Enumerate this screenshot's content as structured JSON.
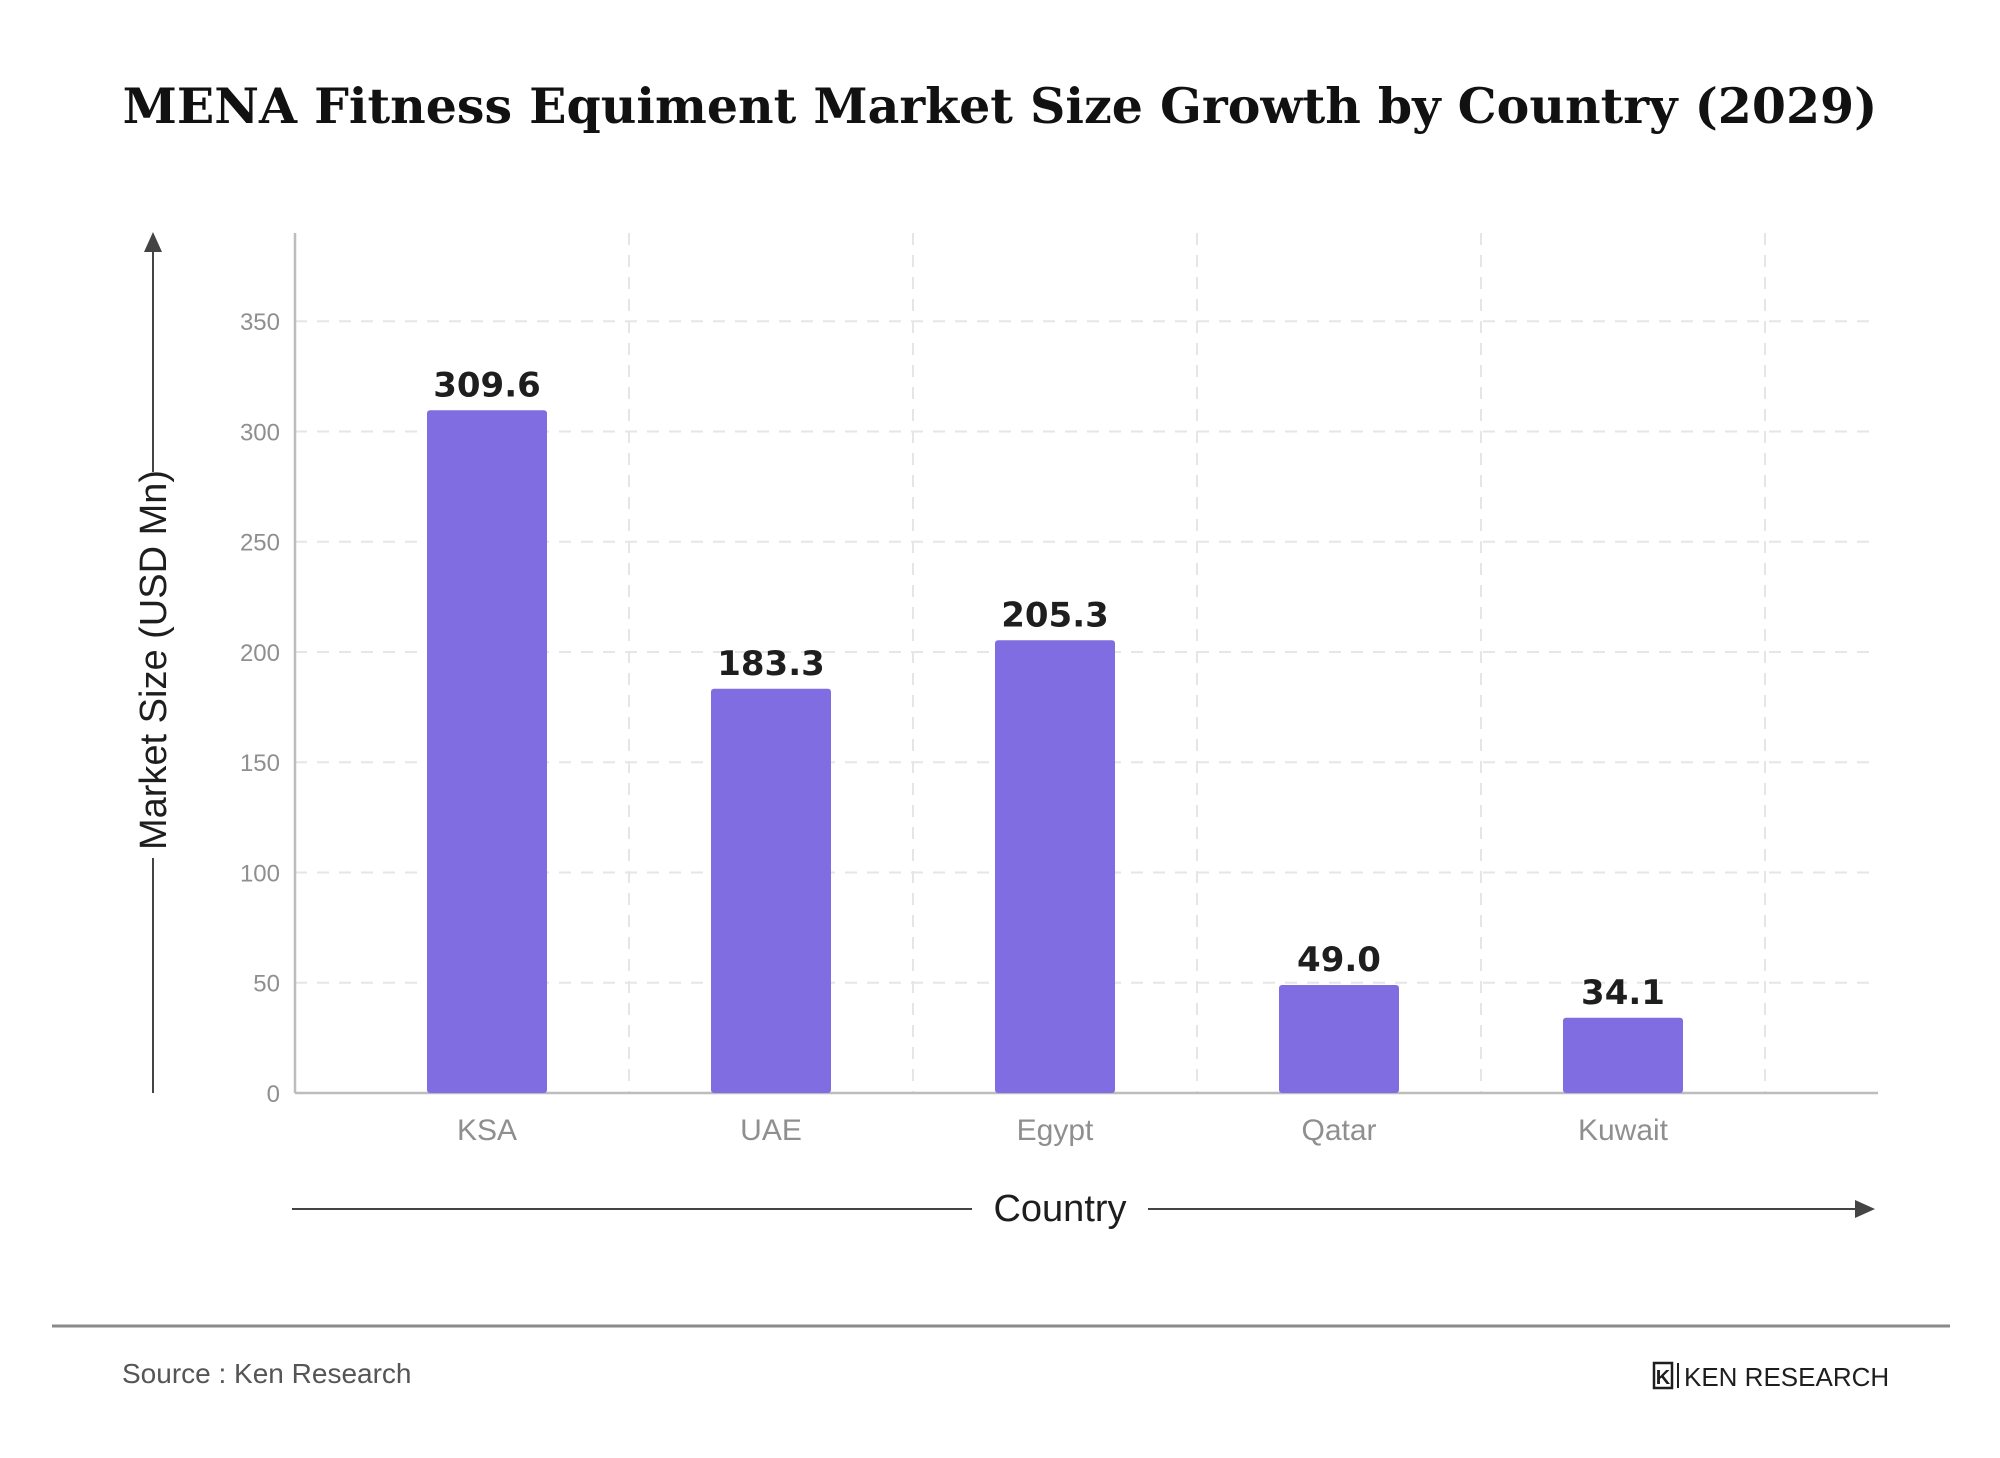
{
  "chart_data": {
    "type": "bar",
    "title": "MENA Fitness Equiment Market Size Growth by Country (2029)",
    "xlabel": "Country",
    "ylabel": "Market Size (USD Mn)",
    "categories": [
      "KSA",
      "UAE",
      "Egypt",
      "Qatar",
      "Kuwait"
    ],
    "values": [
      309.6,
      183.3,
      205.3,
      49.0,
      34.1
    ],
    "value_labels": [
      "309.6",
      "183.3",
      "205.3",
      "49.0",
      "34.1"
    ],
    "yticks": [
      0,
      50,
      100,
      150,
      200,
      250,
      300,
      350
    ],
    "ylim": [
      0,
      390
    ],
    "grid": true,
    "bar_color": "#806de1"
  },
  "footer": {
    "source": "Source : Ken Research",
    "logo_mark": "K",
    "logo_text": "KEN RESEARCH"
  }
}
